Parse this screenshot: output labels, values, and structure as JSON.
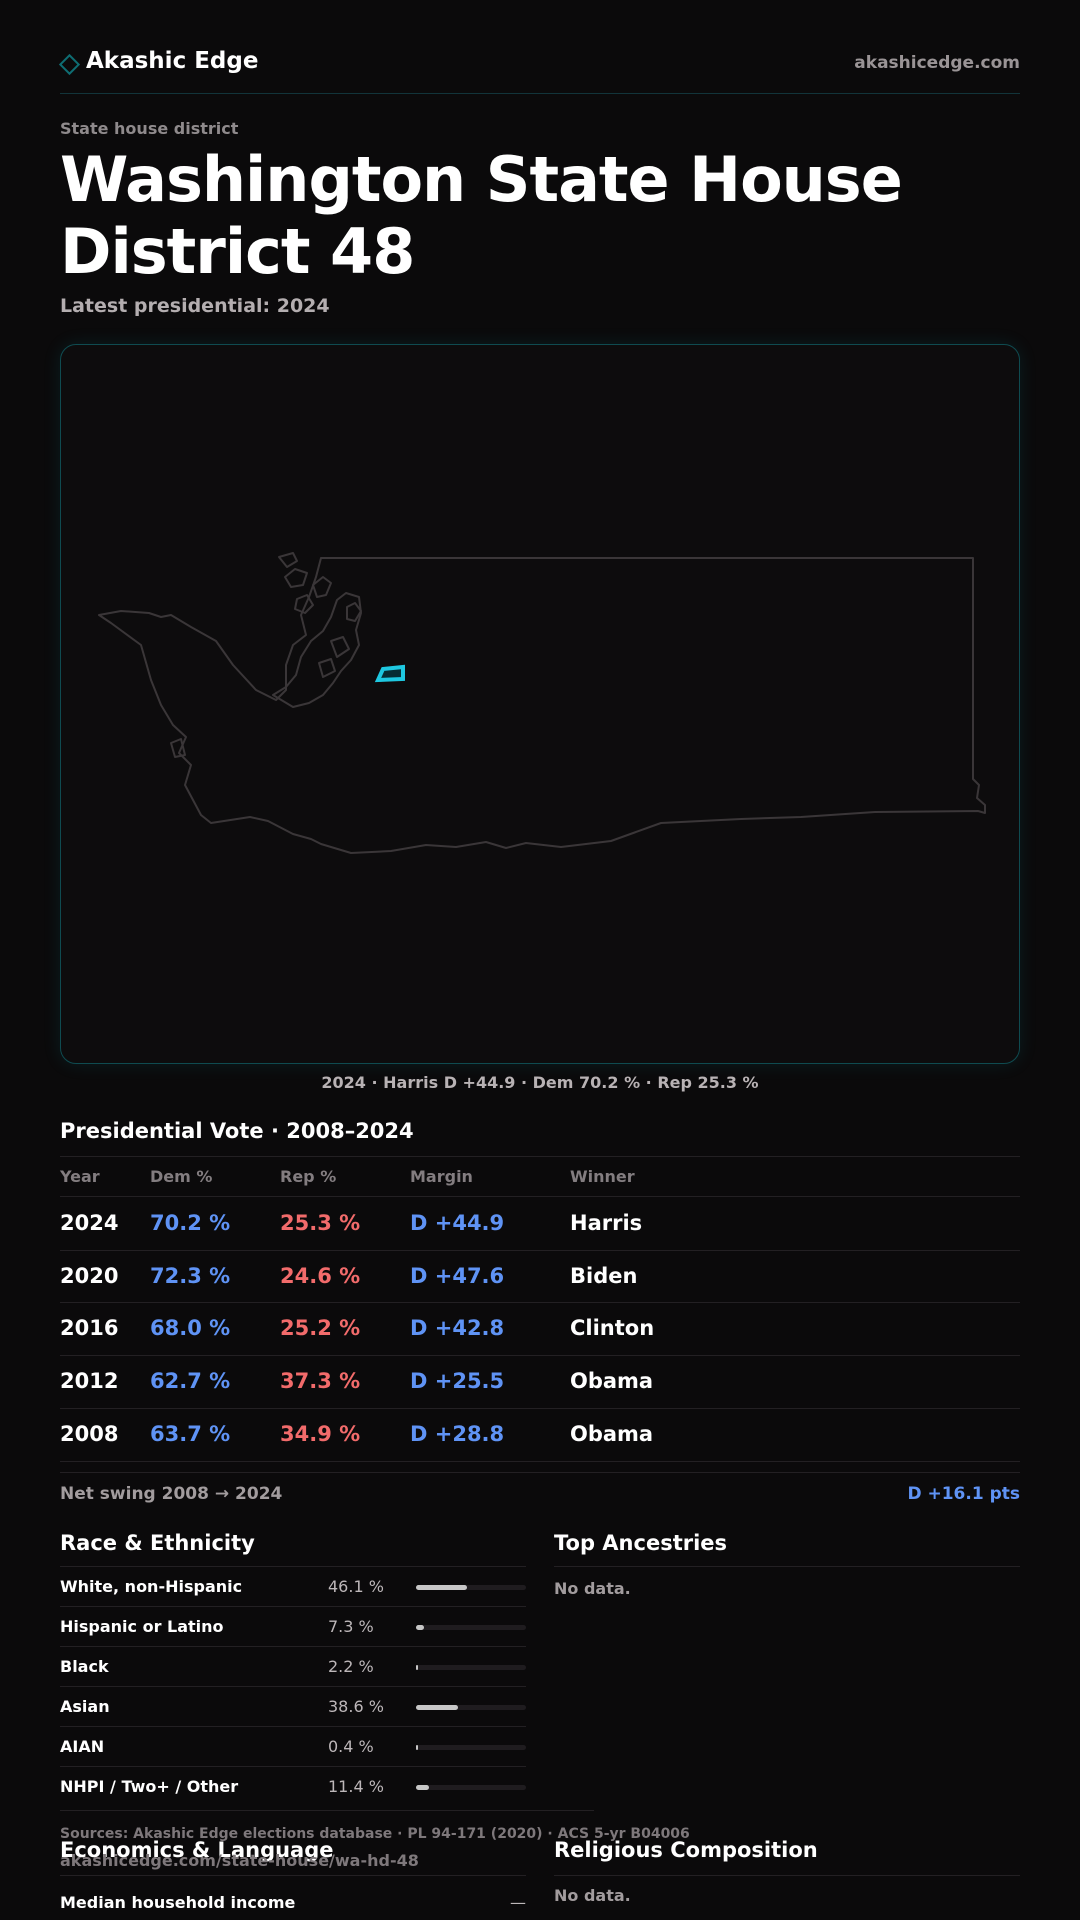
{
  "brand": {
    "name": "Akashic Edge",
    "url": "akashicedge.com",
    "accent": "#0e6d73"
  },
  "header": {
    "kicker": "State house district",
    "title": "Washington State House District 48",
    "latest": "Latest presidential: 2024"
  },
  "map": {
    "caption": "2024 · Harris D +44.9 · Dem 70.2 % · Rep 25.3 %",
    "highlight_color": "#1ec8e0"
  },
  "presidential": {
    "title": "Presidential Vote · 2008–2024",
    "columns": [
      "Year",
      "Dem %",
      "Rep %",
      "Margin",
      "Winner"
    ],
    "rows": [
      {
        "year": "2024",
        "dem": "70.2 %",
        "rep": "25.3 %",
        "margin": "D +44.9",
        "winner": "Harris"
      },
      {
        "year": "2020",
        "dem": "72.3 %",
        "rep": "24.6 %",
        "margin": "D +47.6",
        "winner": "Biden"
      },
      {
        "year": "2016",
        "dem": "68.0 %",
        "rep": "25.2 %",
        "margin": "D +42.8",
        "winner": "Clinton"
      },
      {
        "year": "2012",
        "dem": "62.7 %",
        "rep": "37.3 %",
        "margin": "D +25.5",
        "winner": "Obama"
      },
      {
        "year": "2008",
        "dem": "63.7 %",
        "rep": "34.9 %",
        "margin": "D +28.8",
        "winner": "Obama"
      }
    ],
    "net_swing_label": "Net swing 2008 → 2024",
    "net_swing_value": "D +16.1 pts",
    "dem_color": "#5f93f5",
    "rep_color": "#f26b6b"
  },
  "race": {
    "title": "Race & Ethnicity",
    "rows": [
      {
        "label": "White, non-Hispanic",
        "pct": "46.1 %",
        "value": 0.461
      },
      {
        "label": "Hispanic or Latino",
        "pct": "7.3 %",
        "value": 0.073
      },
      {
        "label": "Black",
        "pct": "2.2 %",
        "value": 0.022
      },
      {
        "label": "Asian",
        "pct": "38.6 %",
        "value": 0.386
      },
      {
        "label": "AIAN",
        "pct": "0.4 %",
        "value": 0.004
      },
      {
        "label": "NHPI / Two+ / Other",
        "pct": "11.4 %",
        "value": 0.114
      }
    ]
  },
  "ancestries": {
    "title": "Top Ancestries",
    "empty": "No data."
  },
  "footer": {
    "sources": "Sources: Akashic Edge elections database · PL 94-171 (2020) · ACS 5-yr B04006",
    "url": "akashicedge.com/state-house/wa-hd-48"
  },
  "economics": {
    "title": "Economics & Language",
    "median_income_label": "Median household income",
    "median_income_value": "—"
  },
  "religion": {
    "title": "Religious Composition",
    "empty": "No data."
  }
}
